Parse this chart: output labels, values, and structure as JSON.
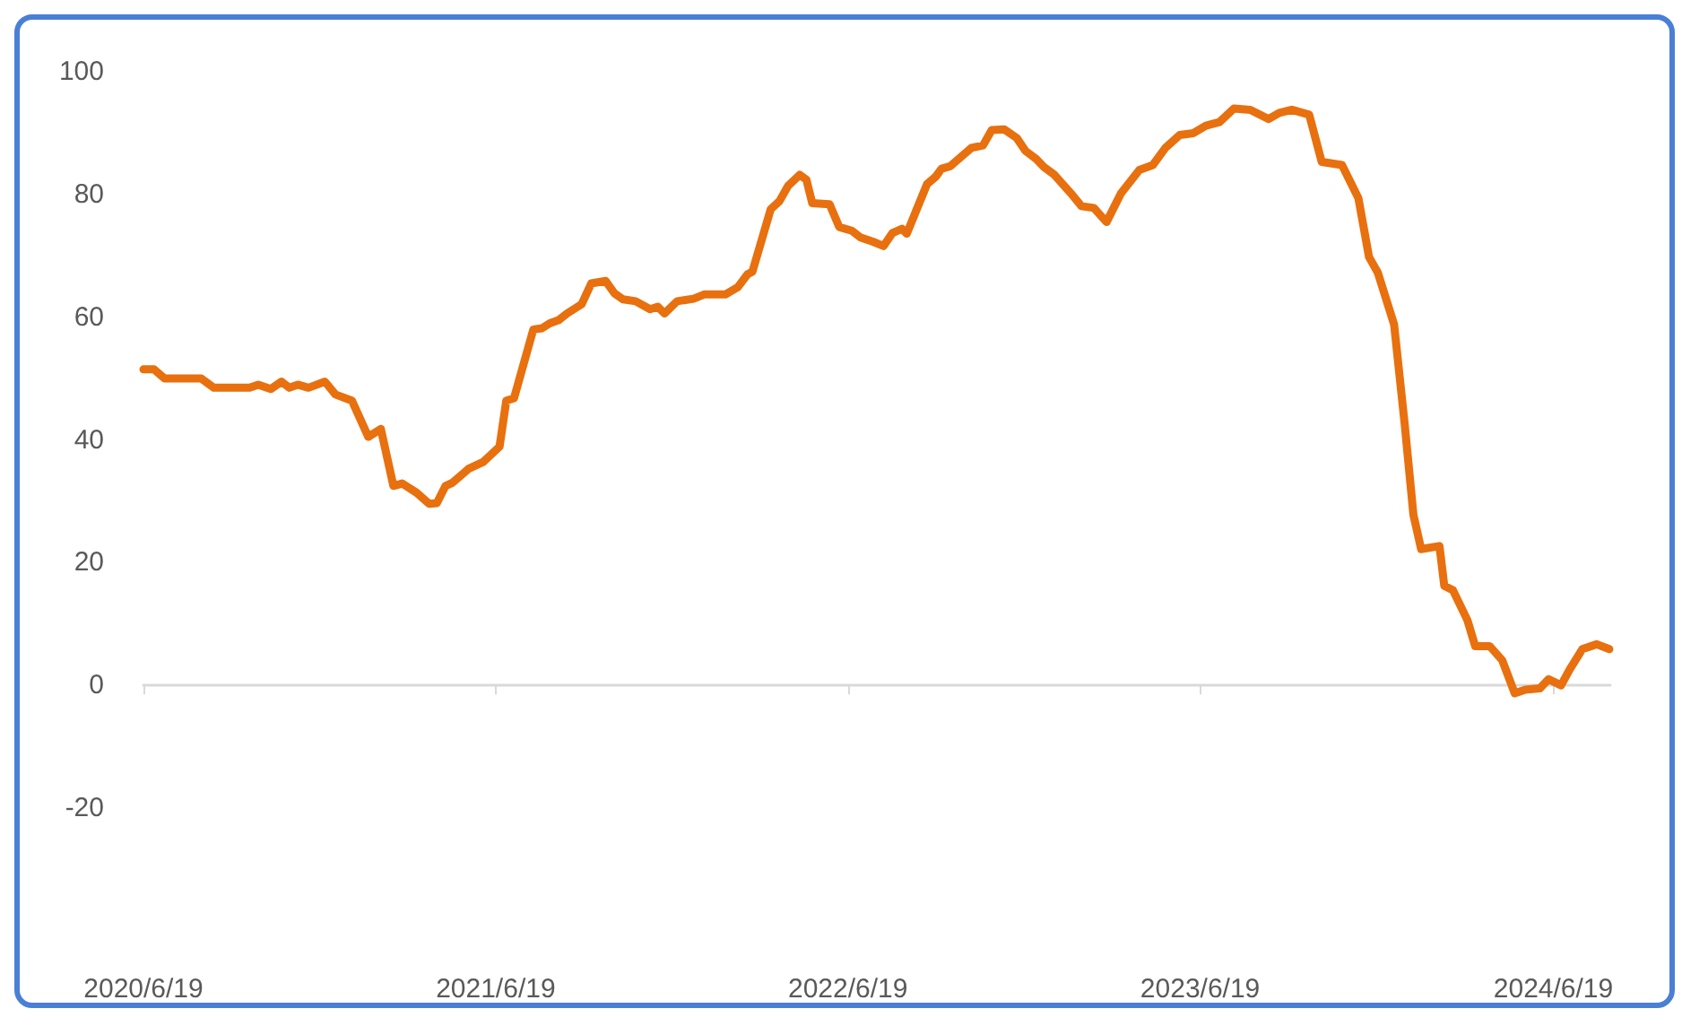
{
  "chart_data": {
    "type": "line",
    "marker": "none",
    "line_style": "solid",
    "xlim": [
      "2020-06-19",
      "2024-08-17"
    ],
    "xticks": [
      {
        "value": "2020-06-19",
        "label": "2020/6/19"
      },
      {
        "value": "2021-06-19",
        "label": "2021/6/19"
      },
      {
        "value": "2022-06-19",
        "label": "2022/6/19"
      },
      {
        "value": "2023-06-19",
        "label": "2023/6/19"
      },
      {
        "value": "2024-06-19",
        "label": "2024/6/19"
      }
    ],
    "ylim": [
      -20,
      100
    ],
    "yticks": [
      -20,
      0,
      20,
      40,
      60,
      80,
      100
    ],
    "series": [
      {
        "color": "#e8700e",
        "x": [
          "2020-06-19",
          "2020-06-30",
          "2020-07-11",
          "2020-08-18",
          "2020-08-31",
          "2020-10-07",
          "2020-10-16",
          "2020-10-29",
          "2020-11-09",
          "2020-11-17",
          "2020-11-26",
          "2020-12-07",
          "2020-12-24",
          "2021-01-04",
          "2021-01-21",
          "2021-02-07",
          "2021-02-20",
          "2021-03-05",
          "2021-03-14",
          "2021-03-29",
          "2021-04-11",
          "2021-04-19",
          "2021-04-28",
          "2021-05-05",
          "2021-05-22",
          "2021-06-06",
          "2021-06-23",
          "2021-06-30",
          "2021-07-08",
          "2021-07-28",
          "2021-08-06",
          "2021-08-14",
          "2021-08-23",
          "2021-09-01",
          "2021-09-16",
          "2021-09-26",
          "2021-10-11",
          "2021-10-20",
          "2021-10-29",
          "2021-11-11",
          "2021-11-26",
          "2021-12-04",
          "2021-12-11",
          "2021-12-24",
          "2022-01-10",
          "2022-01-21",
          "2022-02-12",
          "2022-02-25",
          "2022-03-07",
          "2022-03-12",
          "2022-03-31",
          "2022-04-09",
          "2022-04-18",
          "2022-04-30",
          "2022-05-07",
          "2022-05-13",
          "2022-05-31",
          "2022-06-10",
          "2022-06-23",
          "2022-07-02",
          "2022-07-15",
          "2022-07-26",
          "2022-08-04",
          "2022-08-14",
          "2022-08-19",
          "2022-09-09",
          "2022-09-18",
          "2022-09-24",
          "2022-10-03",
          "2022-10-25",
          "2022-11-06",
          "2022-11-15",
          "2022-11-28",
          "2022-12-11",
          "2022-12-20",
          "2022-12-31",
          "2023-01-08",
          "2023-01-19",
          "2023-02-05",
          "2023-02-16",
          "2023-03-01",
          "2023-03-14",
          "2023-03-29",
          "2023-04-17",
          "2023-05-01",
          "2023-05-14",
          "2023-05-29",
          "2023-06-12",
          "2023-06-25",
          "2023-07-09",
          "2023-07-24",
          "2023-08-10",
          "2023-08-29",
          "2023-09-09",
          "2023-09-22",
          "2023-10-10",
          "2023-10-23",
          "2023-11-13",
          "2023-11-30",
          "2023-12-11",
          "2023-12-20",
          "2024-01-06",
          "2024-01-17",
          "2024-01-26",
          "2024-02-03",
          "2024-02-22",
          "2024-02-27",
          "2024-03-07",
          "2024-03-22",
          "2024-03-30",
          "2024-04-14",
          "2024-04-27",
          "2024-05-10",
          "2024-05-21",
          "2024-06-05",
          "2024-06-14",
          "2024-06-27",
          "2024-07-06",
          "2024-07-19",
          "2024-08-03",
          "2024-08-16"
        ],
        "values": [
          51.5,
          51.5,
          50,
          50,
          48.5,
          48.5,
          49,
          48.3,
          49.5,
          48.5,
          49,
          48.5,
          49.5,
          47.4,
          46.4,
          40.5,
          41.8,
          32.5,
          32.9,
          31.4,
          29.6,
          29.7,
          32.5,
          33,
          35.3,
          36.4,
          38.9,
          46.4,
          46.8,
          58,
          58.2,
          59,
          59.5,
          60.6,
          62.1,
          65.5,
          65.9,
          63.9,
          62.9,
          62.6,
          61.3,
          61.7,
          60.6,
          62.6,
          63,
          63.7,
          63.7,
          64.9,
          67,
          67.4,
          77.6,
          78.9,
          81.4,
          83.2,
          82.4,
          78.6,
          78.4,
          74.7,
          74.1,
          73,
          72.3,
          71.6,
          73.7,
          74.4,
          73.6,
          81.7,
          82.9,
          84.2,
          84.6,
          87.6,
          88,
          90.5,
          90.6,
          89.2,
          87.1,
          85.8,
          84.5,
          83.2,
          80.2,
          78.1,
          77.8,
          75.5,
          80.2,
          84,
          84.8,
          87.6,
          89.7,
          90,
          91.2,
          91.8,
          94,
          93.8,
          92.3,
          93.3,
          93.8,
          93,
          85.3,
          84.8,
          79.4,
          69.8,
          67.3,
          58.8,
          42.5,
          27.8,
          22.2,
          22.7,
          16.2,
          15.5,
          10.6,
          6.4,
          6.4,
          4.1,
          -1.3,
          -0.7,
          -0.5,
          1,
          0,
          2.6,
          5.9,
          6.7,
          5.9
        ]
      }
    ]
  }
}
